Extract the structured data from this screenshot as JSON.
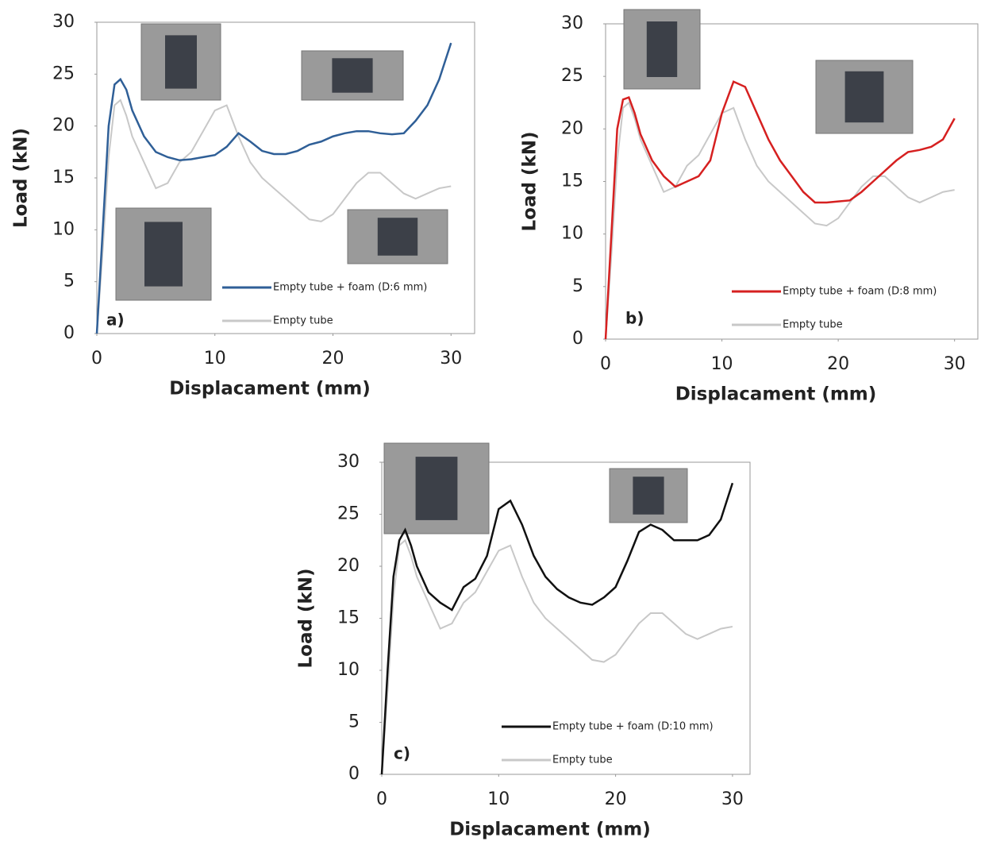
{
  "chart_data": [
    {
      "type": "line",
      "panel_label": "a)",
      "x_label": "Displacament (mm)",
      "y_label": "Load (kN)",
      "x": [
        0,
        0.5,
        1,
        1.5,
        2,
        2.5,
        3,
        4,
        5,
        6,
        7,
        8,
        9,
        10,
        11,
        12,
        13,
        14,
        15,
        16,
        17,
        18,
        19,
        20,
        21,
        22,
        23,
        24,
        25,
        26,
        27,
        28,
        29,
        30
      ],
      "series": [
        {
          "name": "Empty tube + foam (D:6 mm)",
          "color": "#2f5f97",
          "values": [
            0,
            10,
            20,
            24,
            24.5,
            23.5,
            21.5,
            19,
            17.5,
            17,
            16.7,
            16.8,
            17,
            17.2,
            18,
            19.3,
            18.5,
            17.6,
            17.3,
            17.3,
            17.6,
            18.2,
            18.5,
            19,
            19.3,
            19.5,
            19.5,
            19.3,
            19.2,
            19.3,
            20.5,
            22,
            24.5,
            28
          ]
        },
        {
          "name": "Empty tube",
          "color": "#c8c8c8",
          "values": [
            0,
            8,
            17,
            22,
            22.5,
            21,
            19,
            16.5,
            14,
            14.5,
            16.5,
            17.5,
            19.5,
            21.5,
            22,
            19,
            16.5,
            15,
            14,
            13,
            12,
            11,
            10.8,
            11.5,
            13,
            14.5,
            15.5,
            15.5,
            14.5,
            13.5,
            13,
            13.5,
            14,
            14.2
          ]
        }
      ],
      "xlim": [
        0,
        32
      ],
      "ylim": [
        0,
        30
      ],
      "xticks": [
        0,
        10,
        20,
        30
      ],
      "yticks": [
        0,
        5,
        10,
        15,
        20,
        25,
        30
      ]
    },
    {
      "type": "line",
      "panel_label": "b)",
      "x_label": "Displacament (mm)",
      "y_label": "Load (kN)",
      "x": [
        0,
        0.5,
        1,
        1.5,
        2,
        2.5,
        3,
        4,
        5,
        6,
        7,
        8,
        9,
        10,
        11,
        12,
        13,
        14,
        15,
        16,
        17,
        18,
        19,
        20,
        21,
        22,
        23,
        24,
        25,
        26,
        27,
        28,
        29,
        30
      ],
      "series": [
        {
          "name": "Empty tube + foam (D:8 mm)",
          "color": "#d62020",
          "values": [
            0,
            10,
            20,
            22.8,
            23,
            21.5,
            19.5,
            17,
            15.5,
            14.5,
            15,
            15.5,
            17,
            21.5,
            24.5,
            24,
            21.5,
            19,
            17,
            15.5,
            14,
            13,
            13,
            13.1,
            13.2,
            14,
            15,
            16,
            17,
            17.8,
            18,
            18.3,
            19,
            21
          ]
        },
        {
          "name": "Empty tube",
          "color": "#c8c8c8",
          "values": [
            0,
            8,
            17,
            22,
            22.5,
            21,
            19,
            16.5,
            14,
            14.5,
            16.5,
            17.5,
            19.5,
            21.5,
            22,
            19,
            16.5,
            15,
            14,
            13,
            12,
            11,
            10.8,
            11.5,
            13,
            14.5,
            15.5,
            15.5,
            14.5,
            13.5,
            13,
            13.5,
            14,
            14.2
          ]
        }
      ],
      "xlim": [
        0,
        32
      ],
      "ylim": [
        0,
        30
      ],
      "xticks": [
        0,
        10,
        20,
        30
      ],
      "yticks": [
        0,
        5,
        10,
        15,
        20,
        25,
        30
      ]
    },
    {
      "type": "line",
      "panel_label": "c)",
      "x_label": "Displacament (mm)",
      "y_label": "Load (kN)",
      "x": [
        0,
        0.5,
        1,
        1.5,
        2,
        2.5,
        3,
        4,
        5,
        6,
        7,
        8,
        9,
        10,
        11,
        12,
        13,
        14,
        15,
        16,
        17,
        18,
        19,
        20,
        21,
        22,
        23,
        24,
        25,
        26,
        27,
        28,
        29,
        30
      ],
      "series": [
        {
          "name": "Empty tube + foam (D:10 mm)",
          "color": "#111111",
          "values": [
            0,
            10,
            19,
            22.5,
            23.5,
            22,
            20,
            17.5,
            16.5,
            15.8,
            18,
            18.8,
            21,
            25.5,
            26.3,
            24,
            21,
            19,
            17.8,
            17,
            16.5,
            16.3,
            17,
            18,
            20.5,
            23.3,
            24,
            23.5,
            22.5,
            22.5,
            22.5,
            23,
            24.5,
            28
          ]
        },
        {
          "name": "Empty tube",
          "color": "#c8c8c8",
          "values": [
            0,
            8,
            17,
            22,
            22.5,
            21,
            19,
            16.5,
            14,
            14.5,
            16.5,
            17.5,
            19.5,
            21.5,
            22,
            19,
            16.5,
            15,
            14,
            13,
            12,
            11,
            10.8,
            11.5,
            13,
            14.5,
            15.5,
            15.5,
            14.5,
            13.5,
            13,
            13.5,
            14,
            14.2
          ]
        }
      ],
      "xlim": [
        0,
        31.5
      ],
      "ylim": [
        0,
        30
      ],
      "xticks": [
        0,
        10,
        20,
        30
      ],
      "yticks": [
        0,
        5,
        10,
        15,
        20,
        25,
        30
      ]
    }
  ]
}
